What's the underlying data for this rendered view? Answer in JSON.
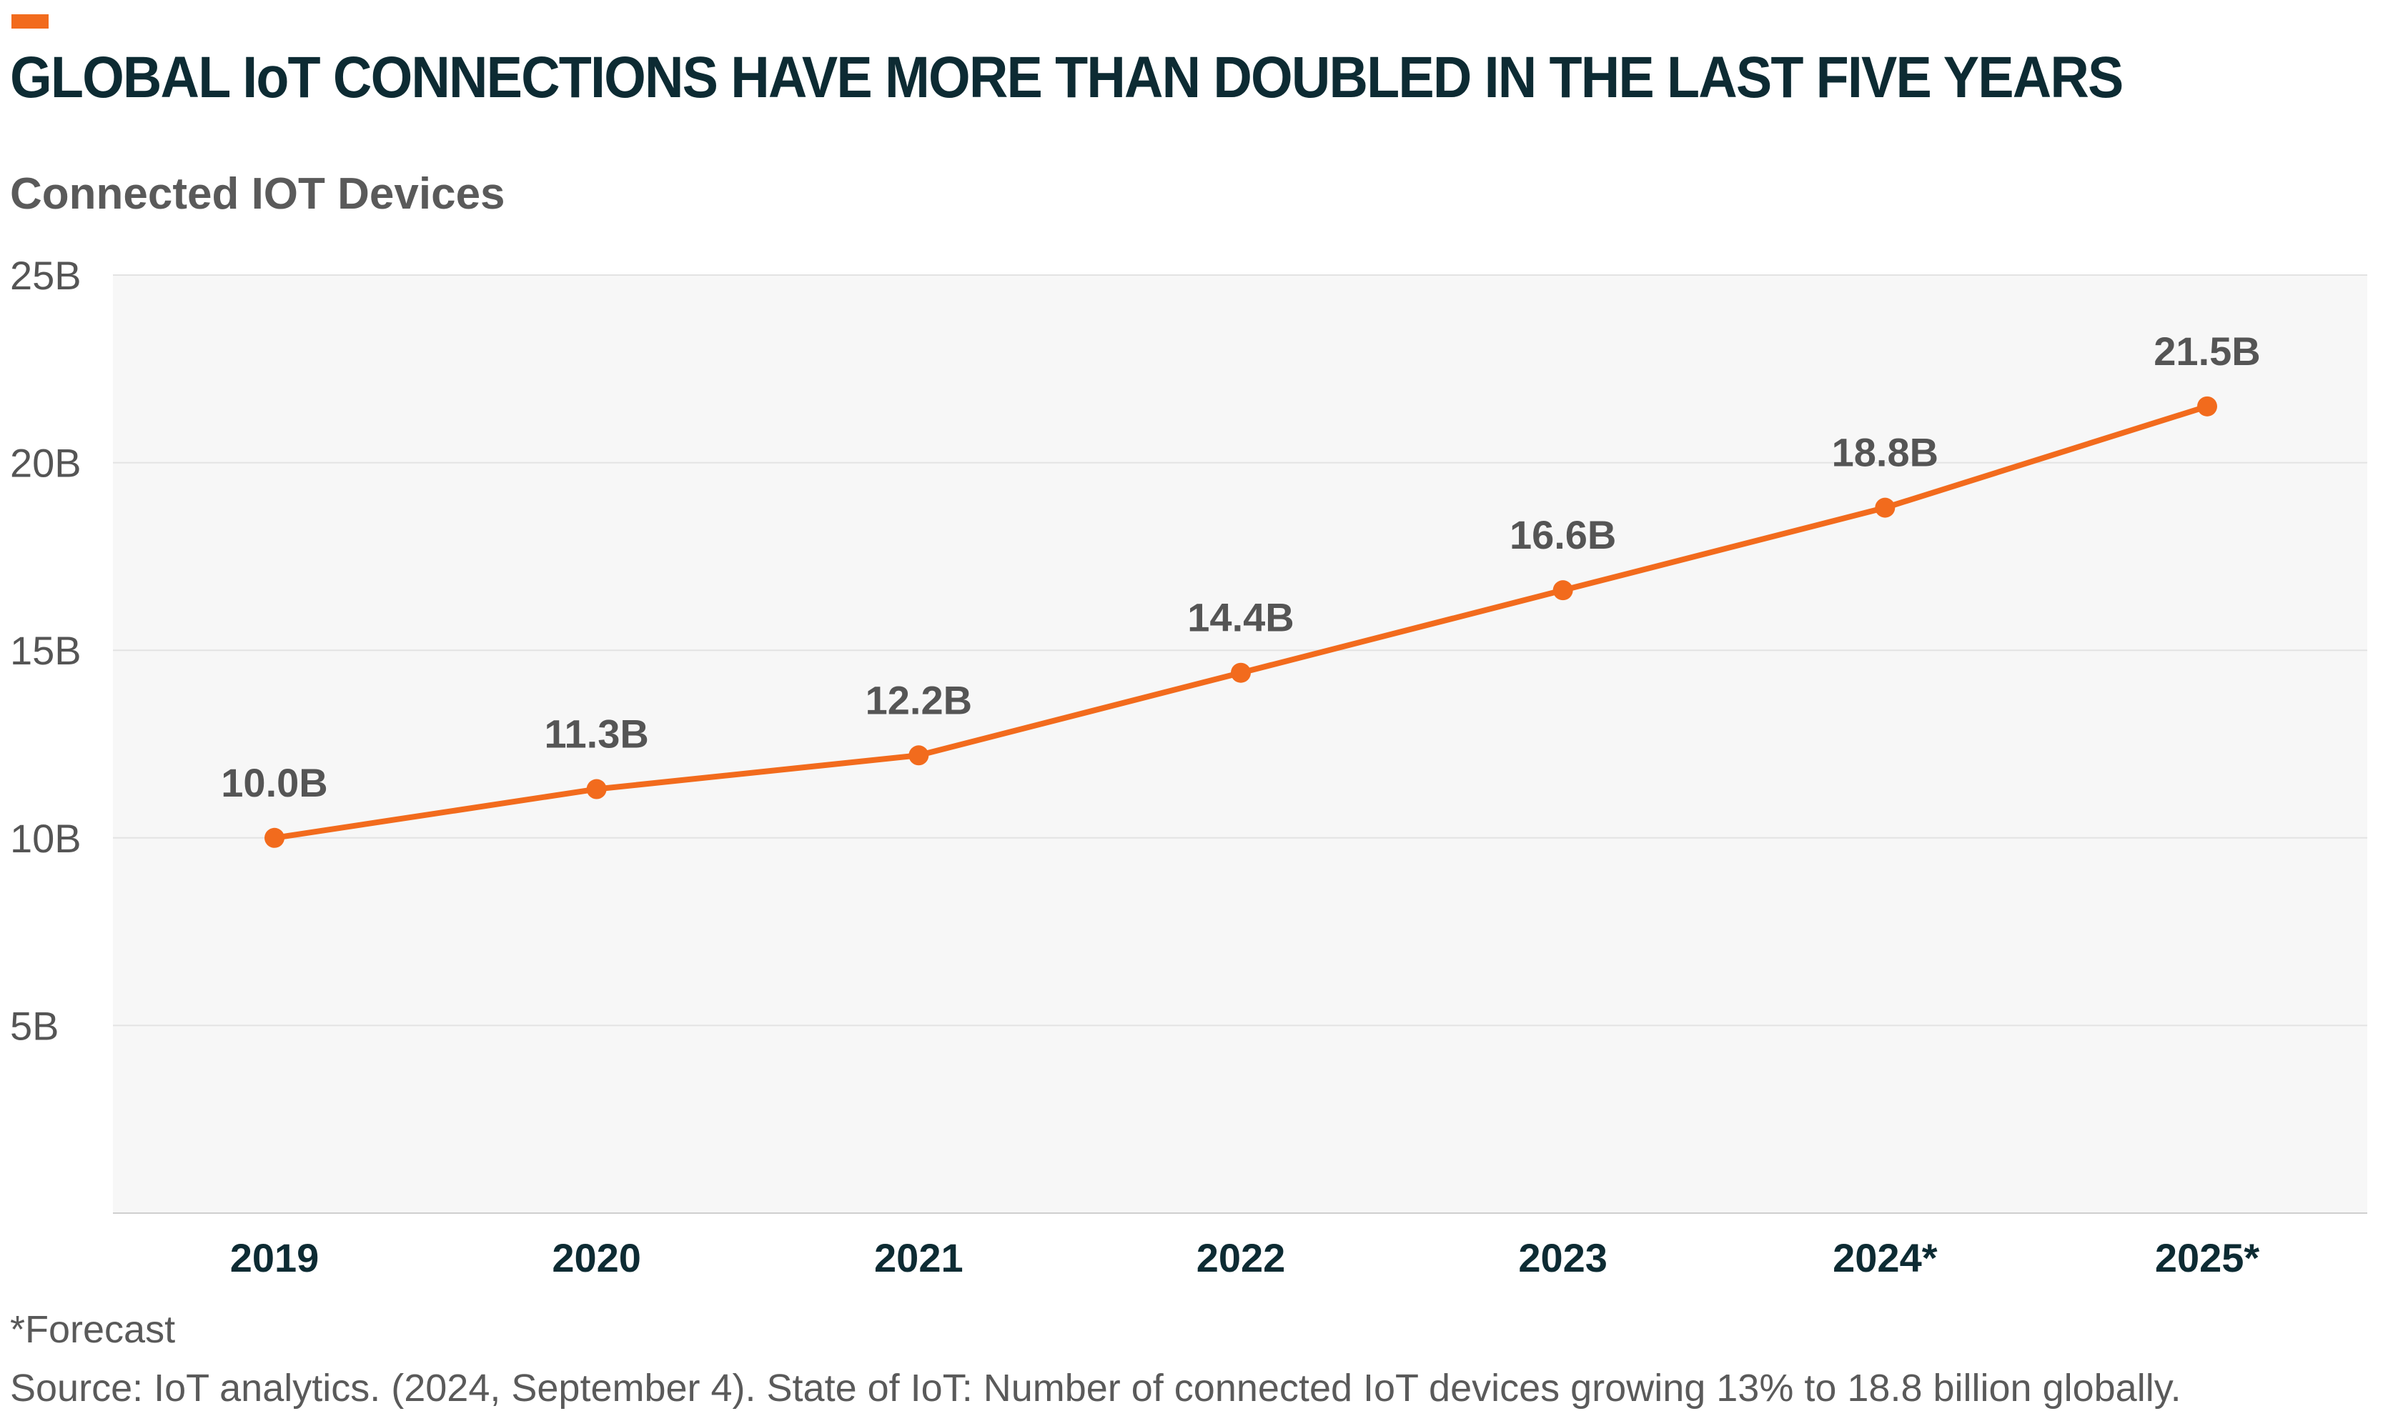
{
  "header": {
    "title": "GLOBAL IoT CONNECTIONS HAVE MORE THAN DOUBLED IN THE LAST FIVE YEARS",
    "subtitle": "Connected IOT Devices"
  },
  "footer": {
    "forecast_note": "*Forecast",
    "source": "Source: IoT analytics. (2024, September 4). State of IoT: Number of connected IoT devices growing 13% to 18.8 billion globally."
  },
  "colors": {
    "accent": "#f26b1d",
    "title": "#0d2b33",
    "plot_background": "#f7f7f7",
    "gridline": "#e3e3e3"
  },
  "chart_data": {
    "type": "line",
    "title": "GLOBAL IoT CONNECTIONS HAVE MORE THAN DOUBLED IN THE LAST FIVE YEARS",
    "subtitle": "Connected IOT Devices",
    "categories": [
      "2019",
      "2020",
      "2021",
      "2022",
      "2023",
      "2024*",
      "2025*"
    ],
    "series": [
      {
        "values": [
          10.0,
          11.3,
          12.2,
          14.4,
          16.6,
          18.8,
          21.5
        ],
        "labels": [
          "10.0B",
          "11.3B",
          "12.2B",
          "14.4B",
          "16.6B",
          "18.8B",
          "21.5B"
        ],
        "color": "#f26b1d"
      }
    ],
    "ylim": [
      0,
      25
    ],
    "yticks": [
      5,
      10,
      15,
      20,
      25
    ],
    "ytick_labels": [
      "5B",
      "10B",
      "15B",
      "20B",
      "25B"
    ],
    "xlabel": "",
    "ylabel": "",
    "grid": true,
    "legend": "none"
  }
}
